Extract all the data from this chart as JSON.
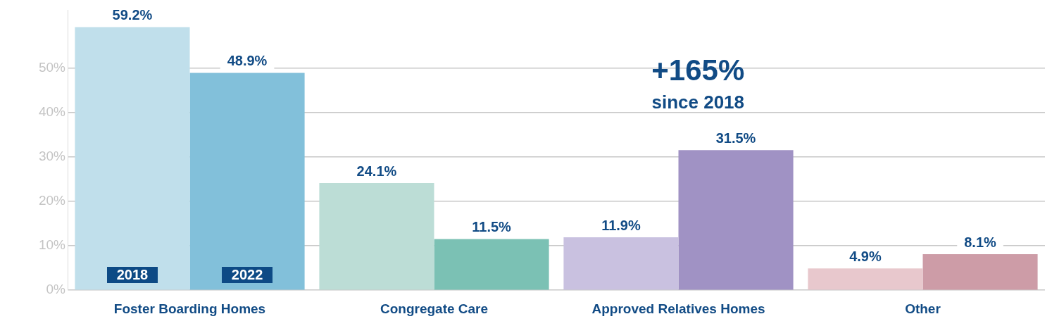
{
  "chart_data": {
    "type": "bar",
    "categories": [
      "Foster Boarding Homes",
      "Congregate Care",
      "Approved Relatives Homes",
      "Other"
    ],
    "series": [
      {
        "name": "2018",
        "colors": [
          "#c0dfeb",
          "#bcddd6",
          "#c9c1e0",
          "#e8c8cd"
        ],
        "values": [
          59.2,
          24.1,
          11.9,
          4.9
        ],
        "value_labels": [
          "59.2%",
          "24.1%",
          "11.9%",
          "4.9%"
        ]
      },
      {
        "name": "2022",
        "colors": [
          "#82c0da",
          "#7bc1b4",
          "#a092c4",
          "#cd9ca7"
        ],
        "values": [
          48.9,
          11.5,
          31.5,
          8.1
        ],
        "value_labels": [
          "48.9%",
          "11.5%",
          "31.5%",
          "8.1%"
        ]
      }
    ],
    "yticks": [
      {
        "value": 0,
        "label": "0%"
      },
      {
        "value": 10,
        "label": "10%"
      },
      {
        "value": 20,
        "label": "20%"
      },
      {
        "value": 30,
        "label": "30%"
      },
      {
        "value": 40,
        "label": "40%"
      },
      {
        "value": 50,
        "label": "50%"
      }
    ],
    "ylim": [
      0,
      63
    ],
    "grid": "y",
    "annotations": [
      "+165%",
      "since 2018"
    ]
  }
}
